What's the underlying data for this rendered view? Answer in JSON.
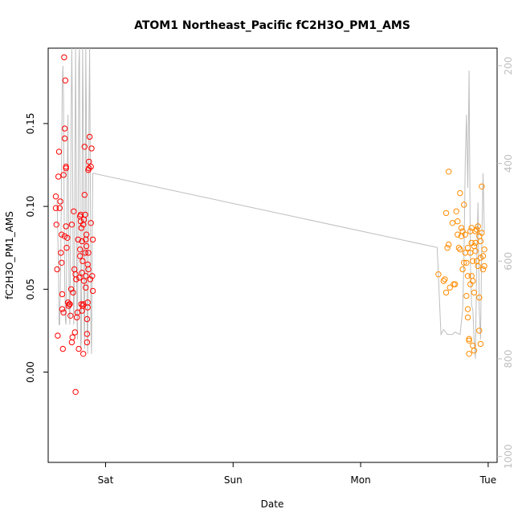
{
  "chart_data": {
    "type": "scatter",
    "title": "ATOM1 Northeast_Pacific fC2H3O_PM1_AMS",
    "xlabel": "Date",
    "ylabel": "fC2H3O_PM1_AMS",
    "x_ticks": [
      "Sat",
      "Sun",
      "Mon",
      "Tue"
    ],
    "y_ticks": [
      "0.00",
      "0.05",
      "0.10",
      "0.15"
    ],
    "y2_ticks": [
      "200",
      "400",
      "600",
      "800",
      "1000"
    ],
    "x_range_days": [
      -0.45,
      3.07
    ],
    "ylim": [
      -0.0545,
      0.1955
    ],
    "y2lim": [
      1012,
      164
    ],
    "y2_reversed": true,
    "grid": false,
    "colors": {
      "early": "#ff0000",
      "late": "#ff8c00",
      "line": "#bebebe",
      "axis": "#000000",
      "right_axis": "#bebebe"
    },
    "series": [
      {
        "color": "early",
        "points": [
          [
            -0.39,
            0.106
          ],
          [
            -0.39,
            0.099
          ],
          [
            -0.385,
            0.089
          ],
          [
            -0.38,
            0.062
          ],
          [
            -0.375,
            0.022
          ],
          [
            -0.37,
            0.118
          ],
          [
            -0.365,
            0.133
          ],
          [
            -0.36,
            0.099
          ],
          [
            -0.355,
            0.103
          ],
          [
            -0.35,
            0.072
          ],
          [
            -0.345,
            0.083
          ],
          [
            -0.345,
            0.066
          ],
          [
            -0.34,
            0.047
          ],
          [
            -0.34,
            0.038
          ],
          [
            -0.335,
            0.014
          ],
          [
            -0.33,
            0.119
          ],
          [
            -0.33,
            0.036
          ],
          [
            -0.325,
            0.19
          ],
          [
            -0.32,
            0.147
          ],
          [
            -0.32,
            0.141
          ],
          [
            -0.32,
            0.082
          ],
          [
            -0.315,
            0.176
          ],
          [
            -0.31,
            0.124
          ],
          [
            -0.31,
            0.123
          ],
          [
            -0.31,
            0.088
          ],
          [
            -0.305,
            0.075
          ],
          [
            -0.3,
            0.081
          ],
          [
            -0.295,
            0.042
          ],
          [
            -0.29,
            0.04
          ],
          [
            -0.285,
            0.041
          ],
          [
            -0.28,
            0.041
          ],
          [
            -0.275,
            0.034
          ],
          [
            -0.27,
            0.05
          ],
          [
            -0.265,
            0.089
          ],
          [
            -0.265,
            0.018
          ],
          [
            -0.26,
            0.021
          ],
          [
            -0.255,
            0.048
          ],
          [
            -0.25,
            0.097
          ],
          [
            -0.245,
            0.062
          ],
          [
            -0.24,
            0.024
          ],
          [
            -0.235,
            -0.012
          ],
          [
            -0.235,
            0.059
          ],
          [
            -0.23,
            0.056
          ],
          [
            -0.225,
            0.033
          ],
          [
            -0.22,
            0.036
          ],
          [
            -0.215,
            0.08
          ],
          [
            -0.21,
            0.014
          ],
          [
            -0.205,
            0.057
          ],
          [
            -0.2,
            0.07
          ],
          [
            -0.2,
            0.074
          ],
          [
            -0.2,
            0.094
          ],
          [
            -0.195,
            0.091
          ],
          [
            -0.195,
            0.095
          ],
          [
            -0.19,
            0.087
          ],
          [
            -0.19,
            0.041
          ],
          [
            -0.185,
            0.06
          ],
          [
            -0.185,
            0.037
          ],
          [
            -0.185,
            0.079
          ],
          [
            -0.18,
            0.067
          ],
          [
            -0.18,
            0.04
          ],
          [
            -0.175,
            0.011
          ],
          [
            -0.175,
            0.089
          ],
          [
            -0.175,
            0.041
          ],
          [
            -0.17,
            0.055
          ],
          [
            -0.17,
            0.092
          ],
          [
            -0.165,
            0.136
          ],
          [
            -0.165,
            0.107
          ],
          [
            -0.16,
            0.095
          ],
          [
            -0.16,
            0.072
          ],
          [
            -0.155,
            0.051
          ],
          [
            -0.155,
            0.08
          ],
          [
            -0.155,
            0.058
          ],
          [
            -0.15,
            0.083
          ],
          [
            -0.15,
            0.076
          ],
          [
            -0.145,
            0.032
          ],
          [
            -0.145,
            0.023
          ],
          [
            -0.145,
            0.018
          ],
          [
            -0.14,
            0.039
          ],
          [
            -0.14,
            0.065
          ],
          [
            -0.14,
            0.042
          ],
          [
            -0.135,
            0.062
          ],
          [
            -0.135,
            0.072
          ],
          [
            -0.135,
            0.122
          ],
          [
            -0.13,
            0.123
          ],
          [
            -0.13,
            0.127
          ],
          [
            -0.125,
            0.142
          ],
          [
            -0.12,
            0.056
          ],
          [
            -0.115,
            0.09
          ],
          [
            -0.115,
            0.124
          ],
          [
            -0.11,
            0.135
          ],
          [
            -0.105,
            0.058
          ],
          [
            -0.1,
            0.08
          ],
          [
            -0.1,
            0.049
          ]
        ]
      },
      {
        "color": "late",
        "points": [
          [
            2.61,
            0.059
          ],
          [
            2.65,
            0.055
          ],
          [
            2.66,
            0.056
          ],
          [
            2.67,
            0.048
          ],
          [
            2.67,
            0.096
          ],
          [
            2.68,
            0.075
          ],
          [
            2.69,
            0.077
          ],
          [
            2.69,
            0.121
          ],
          [
            2.7,
            0.051
          ],
          [
            2.72,
            0.09
          ],
          [
            2.73,
            0.053
          ],
          [
            2.74,
            0.053
          ],
          [
            2.75,
            0.097
          ],
          [
            2.76,
            0.083
          ],
          [
            2.76,
            0.091
          ],
          [
            2.77,
            0.075
          ],
          [
            2.78,
            0.074
          ],
          [
            2.78,
            0.108
          ],
          [
            2.79,
            0.082
          ],
          [
            2.79,
            0.087
          ],
          [
            2.8,
            0.085
          ],
          [
            2.8,
            0.062
          ],
          [
            2.81,
            0.066
          ],
          [
            2.81,
            0.101
          ],
          [
            2.82,
            0.072
          ],
          [
            2.82,
            0.083
          ],
          [
            2.83,
            0.046
          ],
          [
            2.83,
            0.066
          ],
          [
            2.84,
            0.058
          ],
          [
            2.84,
            0.075
          ],
          [
            2.84,
            0.038
          ],
          [
            2.84,
            0.033
          ],
          [
            2.85,
            0.02
          ],
          [
            2.85,
            0.019
          ],
          [
            2.85,
            0.011
          ],
          [
            2.86,
            0.085
          ],
          [
            2.86,
            0.072
          ],
          [
            2.86,
            0.053
          ],
          [
            2.87,
            0.087
          ],
          [
            2.87,
            0.078
          ],
          [
            2.87,
            0.058
          ],
          [
            2.88,
            0.067
          ],
          [
            2.88,
            0.055
          ],
          [
            2.88,
            0.016
          ],
          [
            2.89,
            0.076
          ],
          [
            2.89,
            0.048
          ],
          [
            2.89,
            0.013
          ],
          [
            2.9,
            0.085
          ],
          [
            2.9,
            0.073
          ],
          [
            2.9,
            0.078
          ],
          [
            2.91,
            0.086
          ],
          [
            2.91,
            0.067
          ],
          [
            2.92,
            0.088
          ],
          [
            2.92,
            0.064
          ],
          [
            2.93,
            0.082
          ],
          [
            2.93,
            0.045
          ],
          [
            2.93,
            0.025
          ],
          [
            2.94,
            0.079
          ],
          [
            2.94,
            0.069
          ],
          [
            2.94,
            0.017
          ],
          [
            2.95,
            0.112
          ],
          [
            2.95,
            0.084
          ],
          [
            2.96,
            0.07
          ],
          [
            2.96,
            0.062
          ],
          [
            2.97,
            0.074
          ],
          [
            2.97,
            0.064
          ]
        ]
      }
    ],
    "line_series": {
      "color": "line",
      "axis": "right",
      "points": [
        [
          -0.38,
          475
        ],
        [
          -0.37,
          600
        ],
        [
          -0.365,
          730
        ],
        [
          -0.36,
          730
        ],
        [
          -0.355,
          650
        ],
        [
          -0.35,
          560
        ],
        [
          -0.345,
          390
        ],
        [
          -0.34,
          245
        ],
        [
          -0.335,
          200
        ],
        [
          -0.33,
          260
        ],
        [
          -0.325,
          500
        ],
        [
          -0.32,
          650
        ],
        [
          -0.315,
          720
        ],
        [
          -0.31,
          730
        ],
        [
          -0.305,
          600
        ],
        [
          -0.3,
          400
        ],
        [
          -0.295,
          300
        ],
        [
          -0.29,
          520
        ],
        [
          -0.285,
          700
        ],
        [
          -0.28,
          730
        ],
        [
          -0.275,
          550
        ],
        [
          -0.27,
          300
        ],
        [
          -0.265,
          160
        ],
        [
          -0.26,
          300
        ],
        [
          -0.255,
          600
        ],
        [
          -0.25,
          730
        ],
        [
          -0.245,
          650
        ],
        [
          -0.24,
          400
        ],
        [
          -0.235,
          160
        ],
        [
          -0.23,
          400
        ],
        [
          -0.225,
          700
        ],
        [
          -0.22,
          760
        ],
        [
          -0.215,
          500
        ],
        [
          -0.21,
          200
        ],
        [
          -0.205,
          160
        ],
        [
          -0.2,
          450
        ],
        [
          -0.195,
          780
        ],
        [
          -0.19,
          760
        ],
        [
          -0.185,
          500
        ],
        [
          -0.18,
          160
        ],
        [
          -0.175,
          300
        ],
        [
          -0.17,
          700
        ],
        [
          -0.165,
          780
        ],
        [
          -0.16,
          500
        ],
        [
          -0.155,
          160
        ],
        [
          -0.15,
          300
        ],
        [
          -0.145,
          720
        ],
        [
          -0.14,
          790
        ],
        [
          -0.135,
          600
        ],
        [
          -0.13,
          300
        ],
        [
          -0.125,
          160
        ],
        [
          -0.12,
          400
        ],
        [
          -0.115,
          740
        ],
        [
          -0.11,
          790
        ],
        [
          -0.105,
          550
        ],
        [
          -0.1,
          420
        ],
        [
          2.6,
          572
        ],
        [
          2.62,
          690
        ],
        [
          2.63,
          750
        ],
        [
          2.65,
          740
        ],
        [
          2.68,
          750
        ],
        [
          2.7,
          750
        ],
        [
          2.72,
          750
        ],
        [
          2.74,
          745
        ],
        [
          2.76,
          748
        ],
        [
          2.78,
          750
        ],
        [
          2.8,
          700
        ],
        [
          2.81,
          600
        ],
        [
          2.82,
          400
        ],
        [
          2.83,
          300
        ],
        [
          2.84,
          450
        ],
        [
          2.85,
          210
        ],
        [
          2.86,
          600
        ],
        [
          2.87,
          690
        ],
        [
          2.88,
          700
        ],
        [
          2.89,
          760
        ],
        [
          2.9,
          800
        ],
        [
          2.91,
          600
        ],
        [
          2.92,
          480
        ],
        [
          2.93,
          700
        ],
        [
          2.94,
          760
        ],
        [
          2.95,
          560
        ],
        [
          2.96,
          420
        ],
        [
          2.97,
          540
        ]
      ]
    }
  }
}
